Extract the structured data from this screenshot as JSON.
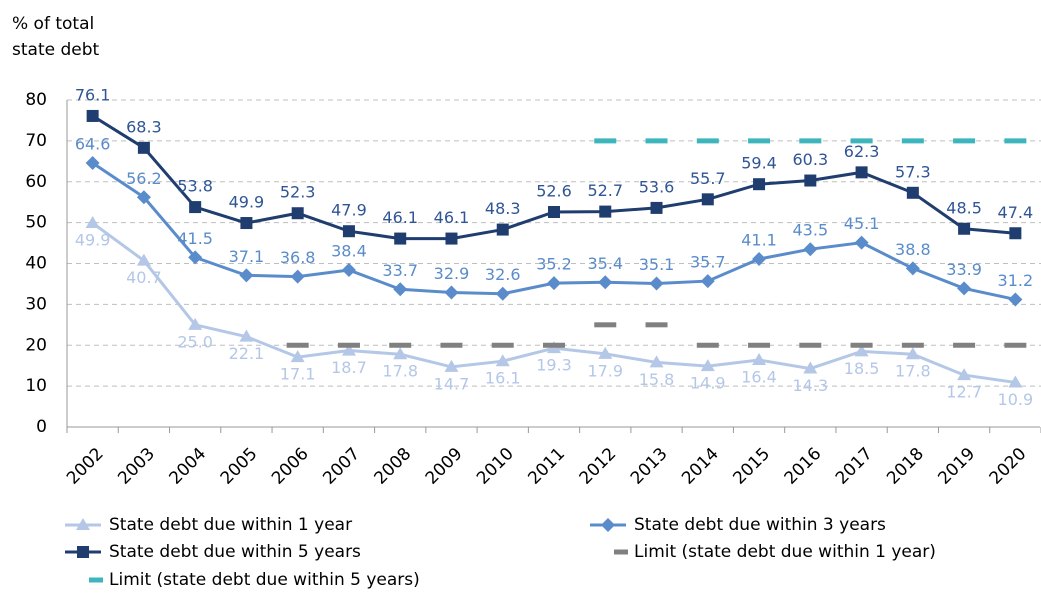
{
  "chart_data": {
    "type": "line",
    "y_label": [
      "% of total",
      "state debt"
    ],
    "categories": [
      "2002",
      "2003",
      "2004",
      "2005",
      "2006",
      "2007",
      "2008",
      "2009",
      "2010",
      "2011",
      "2012",
      "2013",
      "2014",
      "2015",
      "2016",
      "2017",
      "2018",
      "2019",
      "2020"
    ],
    "ylim": [
      0,
      80
    ],
    "yticks": [
      0,
      10,
      20,
      30,
      40,
      50,
      60,
      70,
      80
    ],
    "grid": true,
    "series": [
      {
        "name": "State debt due within 1 year",
        "color": "#b4c7e7",
        "marker": "triangle",
        "values": [
          49.9,
          40.7,
          25.0,
          22.1,
          17.1,
          18.7,
          17.8,
          14.7,
          16.1,
          19.3,
          17.9,
          15.8,
          14.9,
          16.4,
          14.3,
          18.5,
          17.8,
          12.7,
          10.9
        ],
        "value_labels": [
          "49.9",
          "40.7",
          "25.0",
          "22.1",
          "17.1",
          "18.7",
          "17.8",
          "14.7",
          "16.1",
          "19.3",
          "17.9",
          "15.8",
          "14.9",
          "16.4",
          "14.3",
          "18.5",
          "17.8",
          "12.7",
          "10.9"
        ]
      },
      {
        "name": "State debt due within 3 years",
        "color": "#5a8ccb",
        "marker": "diamond",
        "values": [
          64.6,
          56.2,
          41.5,
          37.1,
          36.8,
          38.4,
          33.7,
          32.9,
          32.6,
          35.2,
          35.4,
          35.1,
          35.7,
          41.1,
          43.5,
          45.1,
          38.8,
          33.9,
          31.2
        ]
      },
      {
        "name": "State debt due within 5 years",
        "color": "#1f3d6e",
        "marker": "square",
        "values": [
          76.1,
          68.3,
          53.8,
          49.9,
          52.3,
          47.9,
          46.1,
          46.1,
          48.3,
          52.6,
          52.7,
          53.6,
          55.7,
          59.4,
          60.3,
          62.3,
          57.3,
          48.5,
          47.4
        ]
      },
      {
        "name": "Limit (state debt due within 1 year)",
        "color": "#808080",
        "marker": "dash",
        "values": [
          null,
          null,
          null,
          null,
          20,
          20,
          20,
          20,
          20,
          20,
          25,
          25,
          20,
          20,
          20,
          20,
          20,
          20,
          20
        ]
      },
      {
        "name": "Limit (state debt due within 5 years)",
        "color": "#3db5bd",
        "marker": "dash",
        "values": [
          null,
          null,
          null,
          null,
          null,
          null,
          null,
          null,
          null,
          null,
          70,
          70,
          70,
          70,
          70,
          70,
          70,
          70,
          70
        ]
      }
    ]
  }
}
